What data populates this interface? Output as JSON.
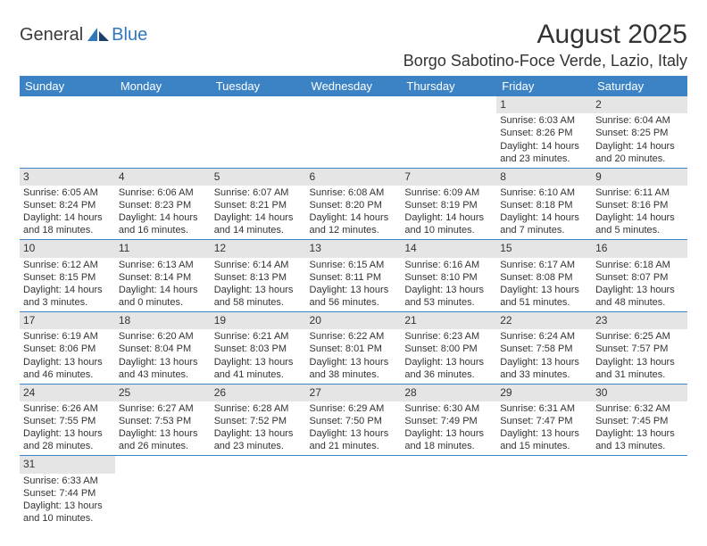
{
  "logo": {
    "general": "General",
    "blue": "Blue"
  },
  "title": "August 2025",
  "location": "Borgo Sabotino-Foce Verde, Lazio, Italy",
  "colors": {
    "header_bg": "#3c83c5",
    "header_text": "#ffffff",
    "daynum_bg": "#e5e5e5",
    "border": "#3c83c5",
    "text": "#333333",
    "logo_blue": "#2f78bd"
  },
  "weekdays": [
    "Sunday",
    "Monday",
    "Tuesday",
    "Wednesday",
    "Thursday",
    "Friday",
    "Saturday"
  ],
  "weeks": [
    [
      null,
      null,
      null,
      null,
      null,
      {
        "n": "1",
        "sunrise": "Sunrise: 6:03 AM",
        "sunset": "Sunset: 8:26 PM",
        "day1": "Daylight: 14 hours",
        "day2": "and 23 minutes."
      },
      {
        "n": "2",
        "sunrise": "Sunrise: 6:04 AM",
        "sunset": "Sunset: 8:25 PM",
        "day1": "Daylight: 14 hours",
        "day2": "and 20 minutes."
      }
    ],
    [
      {
        "n": "3",
        "sunrise": "Sunrise: 6:05 AM",
        "sunset": "Sunset: 8:24 PM",
        "day1": "Daylight: 14 hours",
        "day2": "and 18 minutes."
      },
      {
        "n": "4",
        "sunrise": "Sunrise: 6:06 AM",
        "sunset": "Sunset: 8:23 PM",
        "day1": "Daylight: 14 hours",
        "day2": "and 16 minutes."
      },
      {
        "n": "5",
        "sunrise": "Sunrise: 6:07 AM",
        "sunset": "Sunset: 8:21 PM",
        "day1": "Daylight: 14 hours",
        "day2": "and 14 minutes."
      },
      {
        "n": "6",
        "sunrise": "Sunrise: 6:08 AM",
        "sunset": "Sunset: 8:20 PM",
        "day1": "Daylight: 14 hours",
        "day2": "and 12 minutes."
      },
      {
        "n": "7",
        "sunrise": "Sunrise: 6:09 AM",
        "sunset": "Sunset: 8:19 PM",
        "day1": "Daylight: 14 hours",
        "day2": "and 10 minutes."
      },
      {
        "n": "8",
        "sunrise": "Sunrise: 6:10 AM",
        "sunset": "Sunset: 8:18 PM",
        "day1": "Daylight: 14 hours",
        "day2": "and 7 minutes."
      },
      {
        "n": "9",
        "sunrise": "Sunrise: 6:11 AM",
        "sunset": "Sunset: 8:16 PM",
        "day1": "Daylight: 14 hours",
        "day2": "and 5 minutes."
      }
    ],
    [
      {
        "n": "10",
        "sunrise": "Sunrise: 6:12 AM",
        "sunset": "Sunset: 8:15 PM",
        "day1": "Daylight: 14 hours",
        "day2": "and 3 minutes."
      },
      {
        "n": "11",
        "sunrise": "Sunrise: 6:13 AM",
        "sunset": "Sunset: 8:14 PM",
        "day1": "Daylight: 14 hours",
        "day2": "and 0 minutes."
      },
      {
        "n": "12",
        "sunrise": "Sunrise: 6:14 AM",
        "sunset": "Sunset: 8:13 PM",
        "day1": "Daylight: 13 hours",
        "day2": "and 58 minutes."
      },
      {
        "n": "13",
        "sunrise": "Sunrise: 6:15 AM",
        "sunset": "Sunset: 8:11 PM",
        "day1": "Daylight: 13 hours",
        "day2": "and 56 minutes."
      },
      {
        "n": "14",
        "sunrise": "Sunrise: 6:16 AM",
        "sunset": "Sunset: 8:10 PM",
        "day1": "Daylight: 13 hours",
        "day2": "and 53 minutes."
      },
      {
        "n": "15",
        "sunrise": "Sunrise: 6:17 AM",
        "sunset": "Sunset: 8:08 PM",
        "day1": "Daylight: 13 hours",
        "day2": "and 51 minutes."
      },
      {
        "n": "16",
        "sunrise": "Sunrise: 6:18 AM",
        "sunset": "Sunset: 8:07 PM",
        "day1": "Daylight: 13 hours",
        "day2": "and 48 minutes."
      }
    ],
    [
      {
        "n": "17",
        "sunrise": "Sunrise: 6:19 AM",
        "sunset": "Sunset: 8:06 PM",
        "day1": "Daylight: 13 hours",
        "day2": "and 46 minutes."
      },
      {
        "n": "18",
        "sunrise": "Sunrise: 6:20 AM",
        "sunset": "Sunset: 8:04 PM",
        "day1": "Daylight: 13 hours",
        "day2": "and 43 minutes."
      },
      {
        "n": "19",
        "sunrise": "Sunrise: 6:21 AM",
        "sunset": "Sunset: 8:03 PM",
        "day1": "Daylight: 13 hours",
        "day2": "and 41 minutes."
      },
      {
        "n": "20",
        "sunrise": "Sunrise: 6:22 AM",
        "sunset": "Sunset: 8:01 PM",
        "day1": "Daylight: 13 hours",
        "day2": "and 38 minutes."
      },
      {
        "n": "21",
        "sunrise": "Sunrise: 6:23 AM",
        "sunset": "Sunset: 8:00 PM",
        "day1": "Daylight: 13 hours",
        "day2": "and 36 minutes."
      },
      {
        "n": "22",
        "sunrise": "Sunrise: 6:24 AM",
        "sunset": "Sunset: 7:58 PM",
        "day1": "Daylight: 13 hours",
        "day2": "and 33 minutes."
      },
      {
        "n": "23",
        "sunrise": "Sunrise: 6:25 AM",
        "sunset": "Sunset: 7:57 PM",
        "day1": "Daylight: 13 hours",
        "day2": "and 31 minutes."
      }
    ],
    [
      {
        "n": "24",
        "sunrise": "Sunrise: 6:26 AM",
        "sunset": "Sunset: 7:55 PM",
        "day1": "Daylight: 13 hours",
        "day2": "and 28 minutes."
      },
      {
        "n": "25",
        "sunrise": "Sunrise: 6:27 AM",
        "sunset": "Sunset: 7:53 PM",
        "day1": "Daylight: 13 hours",
        "day2": "and 26 minutes."
      },
      {
        "n": "26",
        "sunrise": "Sunrise: 6:28 AM",
        "sunset": "Sunset: 7:52 PM",
        "day1": "Daylight: 13 hours",
        "day2": "and 23 minutes."
      },
      {
        "n": "27",
        "sunrise": "Sunrise: 6:29 AM",
        "sunset": "Sunset: 7:50 PM",
        "day1": "Daylight: 13 hours",
        "day2": "and 21 minutes."
      },
      {
        "n": "28",
        "sunrise": "Sunrise: 6:30 AM",
        "sunset": "Sunset: 7:49 PM",
        "day1": "Daylight: 13 hours",
        "day2": "and 18 minutes."
      },
      {
        "n": "29",
        "sunrise": "Sunrise: 6:31 AM",
        "sunset": "Sunset: 7:47 PM",
        "day1": "Daylight: 13 hours",
        "day2": "and 15 minutes."
      },
      {
        "n": "30",
        "sunrise": "Sunrise: 6:32 AM",
        "sunset": "Sunset: 7:45 PM",
        "day1": "Daylight: 13 hours",
        "day2": "and 13 minutes."
      }
    ],
    [
      {
        "n": "31",
        "sunrise": "Sunrise: 6:33 AM",
        "sunset": "Sunset: 7:44 PM",
        "day1": "Daylight: 13 hours",
        "day2": "and 10 minutes."
      },
      null,
      null,
      null,
      null,
      null,
      null
    ]
  ]
}
